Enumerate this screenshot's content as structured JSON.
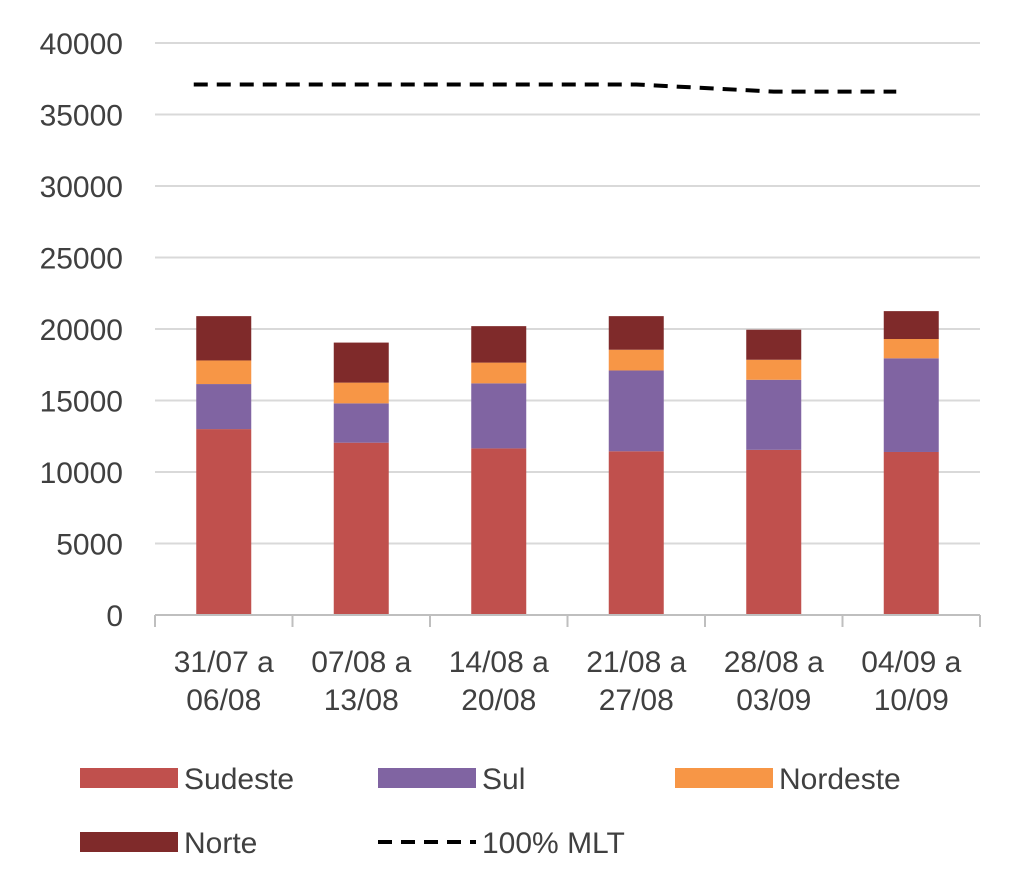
{
  "chart_data": {
    "type": "bar",
    "stacked": true,
    "title": "",
    "xlabel": "",
    "ylabel": "",
    "ylim": [
      0,
      40000
    ],
    "yticks": [
      0,
      5000,
      10000,
      15000,
      20000,
      25000,
      30000,
      35000,
      40000
    ],
    "categories": [
      [
        "31/07 a",
        "06/08"
      ],
      [
        "07/08 a",
        "13/08"
      ],
      [
        "14/08 a",
        "20/08"
      ],
      [
        "21/08 a",
        "27/08"
      ],
      [
        "28/08 a",
        "03/09"
      ],
      [
        "04/09 a",
        "10/09"
      ]
    ],
    "series": [
      {
        "name": "Sudeste",
        "color": "#C0504D",
        "values": [
          13000,
          12050,
          11650,
          11450,
          11550,
          11400
        ]
      },
      {
        "name": "Sul",
        "color": "#8064A2",
        "values": [
          3150,
          2750,
          4550,
          5650,
          4900,
          6550
        ]
      },
      {
        "name": "Nordeste",
        "color": "#F79646",
        "values": [
          1650,
          1450,
          1450,
          1450,
          1400,
          1350
        ]
      },
      {
        "name": "Norte",
        "color": "#7F2A2A",
        "values": [
          3100,
          2800,
          2550,
          2350,
          2100,
          1950
        ]
      }
    ],
    "line_series": [
      {
        "name": "100% MLT",
        "color": "#000000",
        "style": "dashed",
        "values": [
          37100,
          37100,
          37100,
          37100,
          36600,
          36600
        ]
      }
    ],
    "legend": {
      "placement": "bottom",
      "entries": [
        "Sudeste",
        "Sul",
        "Nordeste",
        "Norte",
        "100% MLT"
      ]
    },
    "grid": true
  }
}
